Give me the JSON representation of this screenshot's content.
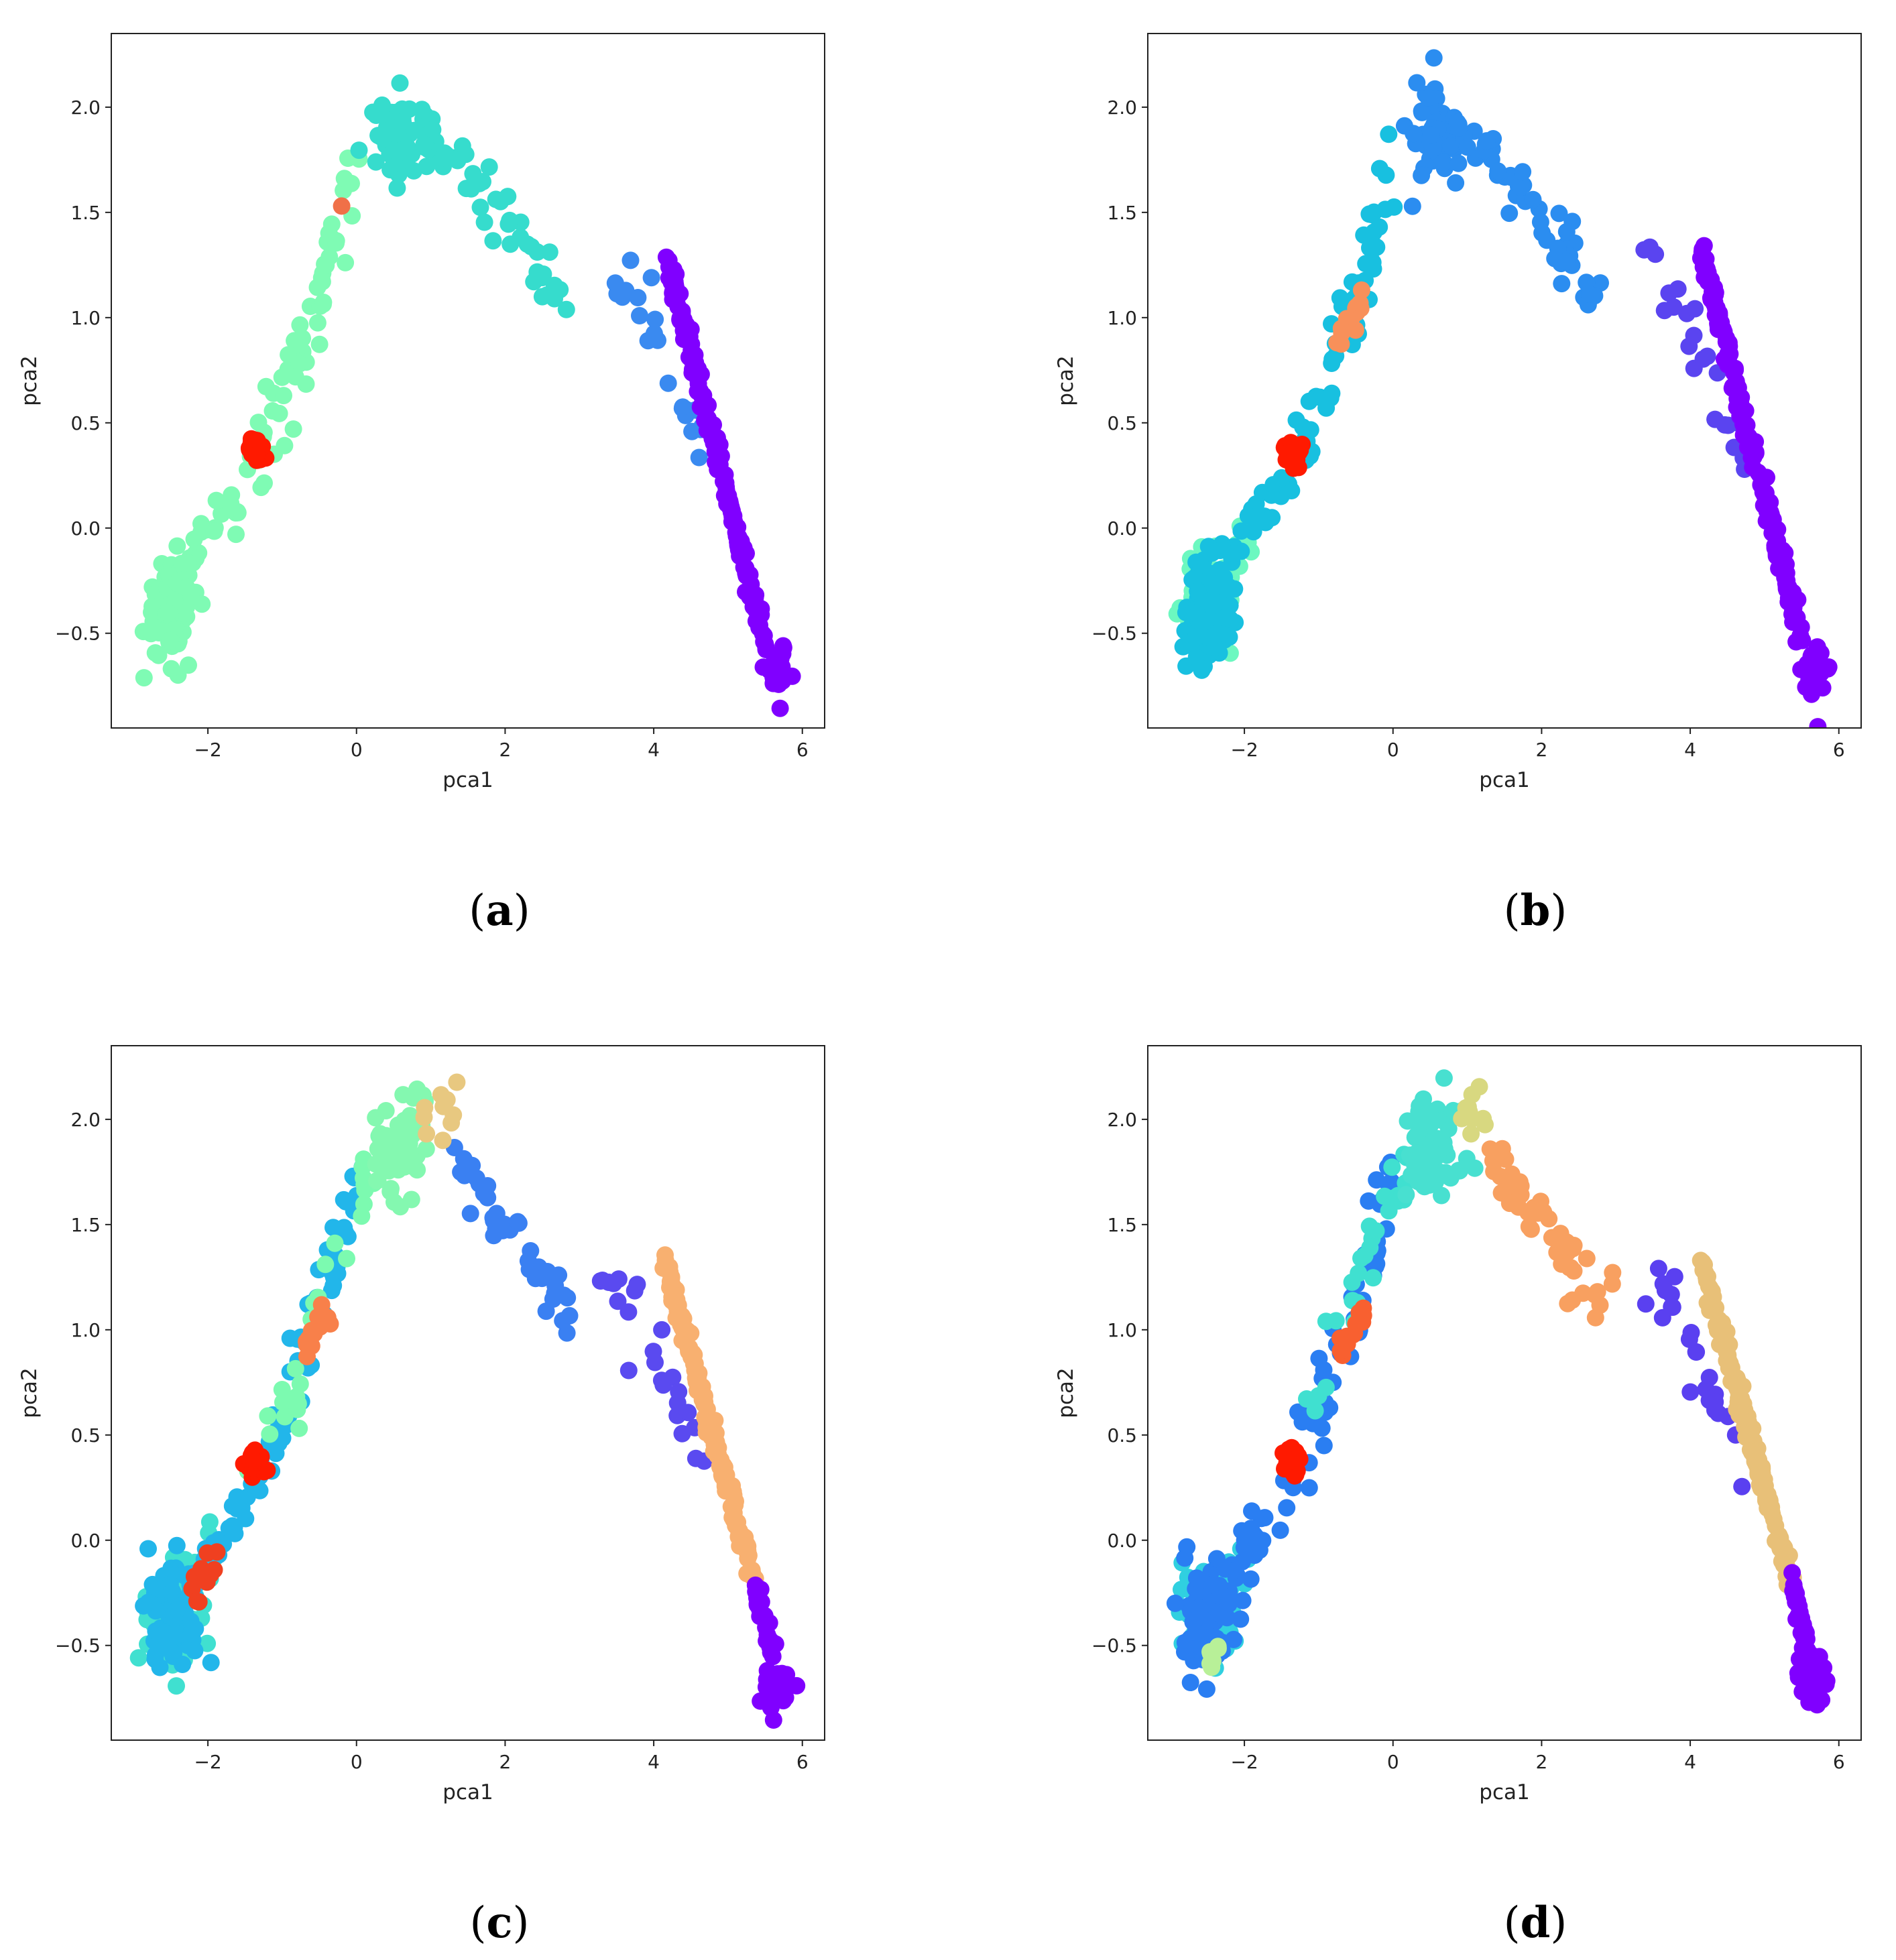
{
  "figure": {
    "panels": [
      "a",
      "b",
      "c",
      "d"
    ]
  },
  "chart_data": [
    {
      "panel": "a",
      "caption": "(a)",
      "type": "scatter",
      "xlabel": "pca1",
      "ylabel": "pca2",
      "xlim": [
        -3.3,
        6.3
      ],
      "ylim": [
        -0.95,
        2.35
      ],
      "xticks": [
        -2,
        0,
        2,
        4,
        6
      ],
      "yticks": [
        -0.5,
        0.0,
        0.5,
        1.0,
        1.5,
        2.0
      ],
      "xtick_labels": [
        "−2",
        "0",
        "2",
        "4",
        "6"
      ],
      "ytick_labels": [
        "−0.5",
        "0.0",
        "0.5",
        "1.0",
        "1.5",
        "2.0"
      ],
      "grid": false,
      "clusters": [
        {
          "name": "cluster-lower-left-arm",
          "color": "#7ffbb4",
          "shape": "left-arm"
        },
        {
          "name": "cluster-peak-and-descent",
          "color": "#36dccd",
          "shape": "peak-descent"
        },
        {
          "name": "cluster-right-scatter",
          "color": "#3a8af0",
          "shape": "right-scatter"
        },
        {
          "name": "cluster-diagonal-line",
          "color": "#8000ff",
          "shape": "right-line"
        },
        {
          "name": "cluster-small-red",
          "color": "#ff1a00",
          "shape": "red-blob"
        },
        {
          "name": "cluster-outlier-orange",
          "color": "#f07048",
          "shape": "orange-dot"
        }
      ]
    },
    {
      "panel": "b",
      "caption": "(b)",
      "type": "scatter",
      "xlabel": "pca1",
      "ylabel": "pca2",
      "xlim": [
        -3.3,
        6.3
      ],
      "ylim": [
        -0.95,
        2.35
      ],
      "xticks": [
        -2,
        0,
        2,
        4,
        6
      ],
      "yticks": [
        -0.5,
        0.0,
        0.5,
        1.0,
        1.5,
        2.0
      ],
      "xtick_labels": [
        "−2",
        "0",
        "2",
        "4",
        "6"
      ],
      "ytick_labels": [
        "−0.5",
        "0.0",
        "0.5",
        "1.0",
        "1.5",
        "2.0"
      ],
      "grid": false,
      "clusters": [
        {
          "name": "cluster-bottom-left",
          "color": "#6cf8c0",
          "shape": "bottom-left"
        },
        {
          "name": "cluster-left-arm",
          "color": "#18c0e0",
          "shape": "left-arm"
        },
        {
          "name": "cluster-peak-and-descent",
          "color": "#2b8df0",
          "shape": "peak-descent"
        },
        {
          "name": "cluster-right-scatter",
          "color": "#5a44f0",
          "shape": "right-scatter"
        },
        {
          "name": "cluster-diagonal-line",
          "color": "#8000ff",
          "shape": "right-line"
        },
        {
          "name": "cluster-orange-segment",
          "color": "#f8905a",
          "shape": "orange-segment"
        },
        {
          "name": "cluster-small-red",
          "color": "#ff1a00",
          "shape": "red-blob"
        }
      ]
    },
    {
      "panel": "c",
      "caption": "(c)",
      "type": "scatter",
      "xlabel": "pca1",
      "ylabel": "pca2",
      "xlim": [
        -3.3,
        6.3
      ],
      "ylim": [
        -0.95,
        2.35
      ],
      "xticks": [
        -2,
        0,
        2,
        4,
        6
      ],
      "yticks": [
        -0.5,
        0.0,
        0.5,
        1.0,
        1.5,
        2.0
      ],
      "xtick_labels": [
        "−2",
        "0",
        "2",
        "4",
        "6"
      ],
      "ytick_labels": [
        "−0.5",
        "0.0",
        "0.5",
        "1.0",
        "1.5",
        "2.0"
      ],
      "grid": false,
      "clusters": [
        {
          "name": "cluster-bottom-left",
          "color": "#40e0d0",
          "shape": "bottom-left"
        },
        {
          "name": "cluster-left-arm",
          "color": "#22b6ea",
          "shape": "left-arm"
        },
        {
          "name": "cluster-upper-left",
          "color": "#7cfab0",
          "shape": "upper-left"
        },
        {
          "name": "cluster-peak",
          "color": "#84f8b0",
          "shape": "peak"
        },
        {
          "name": "cluster-descent",
          "color": "#3a80f2",
          "shape": "descent"
        },
        {
          "name": "cluster-right-scatter",
          "color": "#5a4af0",
          "shape": "right-scatter"
        },
        {
          "name": "cluster-upper-line",
          "color": "#f8b070",
          "shape": "line-upper"
        },
        {
          "name": "cluster-lower-line",
          "color": "#8000ff",
          "shape": "line-lower"
        },
        {
          "name": "cluster-tan",
          "color": "#e8c880",
          "shape": "peak-right-tan"
        },
        {
          "name": "cluster-orange-segment",
          "color": "#f8804a",
          "shape": "orange-segment"
        },
        {
          "name": "cluster-small-red",
          "color": "#ff1a00",
          "shape": "red-blob"
        },
        {
          "name": "cluster-red-lower",
          "color": "#f04020",
          "shape": "red-lower"
        }
      ]
    },
    {
      "panel": "d",
      "caption": "(d)",
      "type": "scatter",
      "xlabel": "pca1",
      "ylabel": "pca2",
      "xlim": [
        -3.3,
        6.3
      ],
      "ylim": [
        -0.95,
        2.35
      ],
      "xticks": [
        -2,
        0,
        2,
        4,
        6
      ],
      "yticks": [
        -0.5,
        0.0,
        0.5,
        1.0,
        1.5,
        2.0
      ],
      "xtick_labels": [
        "−2",
        "0",
        "2",
        "4",
        "6"
      ],
      "ytick_labels": [
        "−0.5",
        "0.0",
        "0.5",
        "1.0",
        "1.5",
        "2.0"
      ],
      "grid": false,
      "clusters": [
        {
          "name": "cluster-bottom-left",
          "color": "#30d0e0",
          "shape": "bottom-left"
        },
        {
          "name": "cluster-left-arm",
          "color": "#2a7ef2",
          "shape": "left-arm"
        },
        {
          "name": "cluster-upper-left",
          "color": "#40e0d0",
          "shape": "upper-left"
        },
        {
          "name": "cluster-peak",
          "color": "#48e0d0",
          "shape": "peak"
        },
        {
          "name": "cluster-peak-right",
          "color": "#d8d880",
          "shape": "peak-right-tan"
        },
        {
          "name": "cluster-descent",
          "color": "#f8a060",
          "shape": "descent"
        },
        {
          "name": "cluster-right-scatter",
          "color": "#5a40f0",
          "shape": "right-scatter"
        },
        {
          "name": "cluster-line",
          "color": "#e8c078",
          "shape": "line-upper"
        },
        {
          "name": "cluster-line-bottom",
          "color": "#8000ff",
          "shape": "line-lower"
        },
        {
          "name": "cluster-orange-segment",
          "color": "#f86030",
          "shape": "orange-segment"
        },
        {
          "name": "cluster-small-red",
          "color": "#ff1a00",
          "shape": "red-blob"
        },
        {
          "name": "cluster-green-lower",
          "color": "#b8f098",
          "shape": "green-lower"
        }
      ]
    }
  ]
}
